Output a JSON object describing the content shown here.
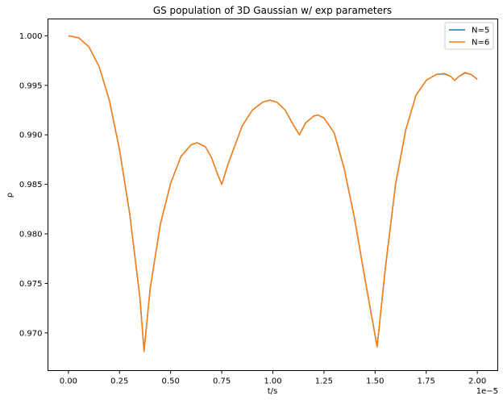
{
  "chart_data": {
    "type": "line",
    "title": "GS population of 3D Gaussian w/ exp parameters",
    "xlabel": "t/s",
    "ylabel": "ρ",
    "x_offset_label": "1e−5",
    "xlim": [
      -1e-06,
      2.1e-05
    ],
    "ylim": [
      0.9662,
      1.0017
    ],
    "x_ticks": [
      0.0,
      2.5e-06,
      5e-06,
      7.5e-06,
      1e-05,
      1.25e-05,
      1.5e-05,
      1.75e-05,
      2e-05
    ],
    "x_tick_labels": [
      "0.00",
      "0.25",
      "0.50",
      "0.75",
      "1.00",
      "1.25",
      "1.50",
      "1.75",
      "2.00"
    ],
    "y_ticks": [
      0.97,
      0.975,
      0.98,
      0.985,
      0.99,
      0.995,
      1.0
    ],
    "y_tick_labels": [
      "0.970",
      "0.975",
      "0.980",
      "0.985",
      "0.990",
      "0.995",
      "1.000"
    ],
    "grid": false,
    "legend_position": "top-right",
    "series": [
      {
        "name": "N=5",
        "color": "#1f77b4",
        "points": [
          [
            0.0,
            1.0
          ],
          [
            5e-07,
            0.9998
          ],
          [
            1e-06,
            0.9989
          ],
          [
            1.5e-06,
            0.9969
          ],
          [
            2e-06,
            0.9935
          ],
          [
            2.5e-06,
            0.9885
          ],
          [
            3e-06,
            0.982
          ],
          [
            3.5e-06,
            0.9735
          ],
          [
            3.7e-06,
            0.9682
          ],
          [
            4e-06,
            0.9745
          ],
          [
            4.5e-06,
            0.981
          ],
          [
            5e-06,
            0.9851
          ],
          [
            5.5e-06,
            0.9878
          ],
          [
            6e-06,
            0.989
          ],
          [
            6.3e-06,
            0.9892
          ],
          [
            6.7e-06,
            0.9888
          ],
          [
            7e-06,
            0.9877
          ],
          [
            7.3e-06,
            0.986
          ],
          [
            7.5e-06,
            0.985
          ],
          [
            7.8e-06,
            0.987
          ],
          [
            8.5e-06,
            0.9909
          ],
          [
            9e-06,
            0.9925
          ],
          [
            9.5e-06,
            0.9933
          ],
          [
            9.85e-06,
            0.9935
          ],
          [
            1.02e-05,
            0.9933
          ],
          [
            1.06e-05,
            0.9925
          ],
          [
            1.1e-05,
            0.991
          ],
          [
            1.13e-05,
            0.99
          ],
          [
            1.16e-05,
            0.9912
          ],
          [
            1.2e-05,
            0.9919
          ],
          [
            1.22e-05,
            0.992
          ],
          [
            1.25e-05,
            0.9917
          ],
          [
            1.3e-05,
            0.9902
          ],
          [
            1.35e-05,
            0.9865
          ],
          [
            1.4e-05,
            0.9815
          ],
          [
            1.45e-05,
            0.9755
          ],
          [
            1.51e-05,
            0.9686
          ],
          [
            1.55e-05,
            0.9765
          ],
          [
            1.6e-05,
            0.985
          ],
          [
            1.65e-05,
            0.9905
          ],
          [
            1.7e-05,
            0.994
          ],
          [
            1.75e-05,
            0.9955
          ],
          [
            1.8e-05,
            0.9961
          ],
          [
            1.84e-05,
            0.99615
          ],
          [
            1.87e-05,
            0.9959
          ],
          [
            1.89e-05,
            0.9955
          ],
          [
            1.91e-05,
            0.9959
          ],
          [
            1.94e-05,
            0.99625
          ],
          [
            1.97e-05,
            0.9961
          ],
          [
            2e-05,
            0.9956
          ]
        ]
      },
      {
        "name": "N=6",
        "color": "#ff7f0e",
        "points": [
          [
            0.0,
            1.0
          ],
          [
            5e-07,
            0.9998
          ],
          [
            1e-06,
            0.9989
          ],
          [
            1.5e-06,
            0.9969
          ],
          [
            2e-06,
            0.9935
          ],
          [
            2.5e-06,
            0.9885
          ],
          [
            3e-06,
            0.982
          ],
          [
            3.5e-06,
            0.9735
          ],
          [
            3.7e-06,
            0.9681
          ],
          [
            4e-06,
            0.9745
          ],
          [
            4.5e-06,
            0.981
          ],
          [
            5e-06,
            0.9851
          ],
          [
            5.5e-06,
            0.9878
          ],
          [
            6e-06,
            0.989
          ],
          [
            6.3e-06,
            0.9892
          ],
          [
            6.7e-06,
            0.9888
          ],
          [
            7e-06,
            0.9877
          ],
          [
            7.3e-06,
            0.986
          ],
          [
            7.5e-06,
            0.985
          ],
          [
            7.8e-06,
            0.987
          ],
          [
            8.5e-06,
            0.9909
          ],
          [
            9e-06,
            0.9925
          ],
          [
            9.5e-06,
            0.9933
          ],
          [
            9.85e-06,
            0.9935
          ],
          [
            1.02e-05,
            0.9933
          ],
          [
            1.06e-05,
            0.9925
          ],
          [
            1.1e-05,
            0.991
          ],
          [
            1.13e-05,
            0.99
          ],
          [
            1.16e-05,
            0.9912
          ],
          [
            1.2e-05,
            0.9919
          ],
          [
            1.22e-05,
            0.992
          ],
          [
            1.25e-05,
            0.9917
          ],
          [
            1.3e-05,
            0.9902
          ],
          [
            1.35e-05,
            0.9865
          ],
          [
            1.4e-05,
            0.9815
          ],
          [
            1.45e-05,
            0.9755
          ],
          [
            1.51e-05,
            0.9686
          ],
          [
            1.55e-05,
            0.9765
          ],
          [
            1.6e-05,
            0.985
          ],
          [
            1.65e-05,
            0.9905
          ],
          [
            1.7e-05,
            0.994
          ],
          [
            1.75e-05,
            0.9955
          ],
          [
            1.8e-05,
            0.9961
          ],
          [
            1.84e-05,
            0.9962
          ],
          [
            1.87e-05,
            0.9959
          ],
          [
            1.89e-05,
            0.9955
          ],
          [
            1.91e-05,
            0.9959
          ],
          [
            1.94e-05,
            0.9963
          ],
          [
            1.97e-05,
            0.9961
          ],
          [
            2e-05,
            0.9956
          ]
        ]
      }
    ]
  }
}
